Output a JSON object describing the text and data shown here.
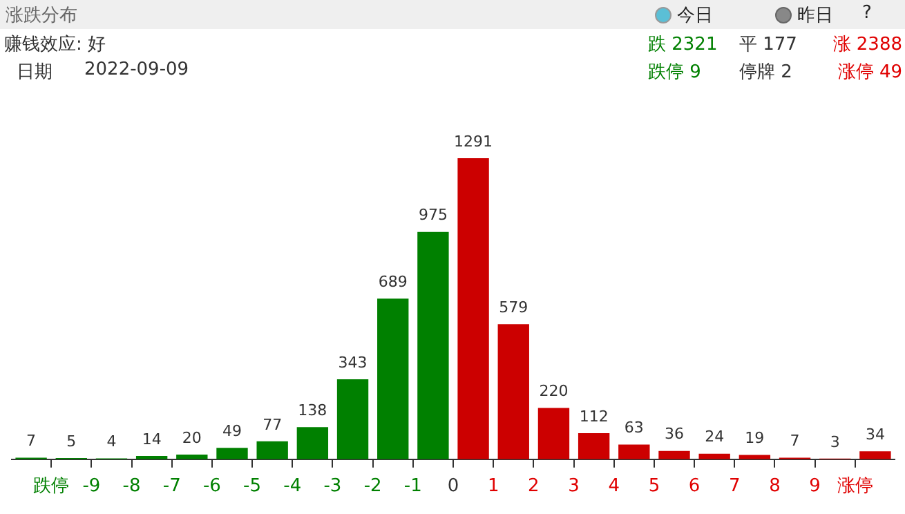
{
  "chart_data": {
    "type": "bar",
    "title": "涨跌分布",
    "x": [
      -10.5,
      -9.5,
      -8.5,
      -7.5,
      -6.5,
      -5.5,
      -4.5,
      -3.5,
      -2.5,
      -1.5,
      -0.5,
      0.5,
      1.5,
      2.5,
      3.5,
      4.5,
      5.5,
      6.5,
      7.5,
      8.5,
      9.5,
      10.5
    ],
    "values": [
      7,
      5,
      4,
      14,
      20,
      49,
      77,
      138,
      343,
      689,
      975,
      1291,
      579,
      220,
      112,
      63,
      36,
      24,
      19,
      7,
      3,
      34
    ],
    "colors": [
      "#008000",
      "#008000",
      "#008000",
      "#008000",
      "#008000",
      "#008000",
      "#008000",
      "#008000",
      "#008000",
      "#008000",
      "#008000",
      "#cc0000",
      "#cc0000",
      "#cc0000",
      "#cc0000",
      "#cc0000",
      "#cc0000",
      "#cc0000",
      "#cc0000",
      "#cc0000",
      "#cc0000",
      "#cc0000"
    ],
    "xlim": [
      -11,
      11
    ],
    "xticks": [
      {
        "value": -10,
        "label": "跌停"
      },
      {
        "value": -9,
        "label": "-9"
      },
      {
        "value": -8,
        "label": "-8"
      },
      {
        "value": -7,
        "label": "-7"
      },
      {
        "value": -6,
        "label": "-6"
      },
      {
        "value": -5,
        "label": "-5"
      },
      {
        "value": -4,
        "label": "-4"
      },
      {
        "value": -3,
        "label": "-3"
      },
      {
        "value": -2,
        "label": "-2"
      },
      {
        "value": -1,
        "label": "-1"
      },
      {
        "value": 0,
        "label": "0"
      },
      {
        "value": 1,
        "label": "1"
      },
      {
        "value": 2,
        "label": "2"
      },
      {
        "value": 3,
        "label": "3"
      },
      {
        "value": 4,
        "label": "4"
      },
      {
        "value": 5,
        "label": "5"
      },
      {
        "value": 6,
        "label": "6"
      },
      {
        "value": 7,
        "label": "7"
      },
      {
        "value": 8,
        "label": "8"
      },
      {
        "value": 9,
        "label": "9"
      },
      {
        "value": 10,
        "label": "涨停"
      }
    ],
    "tick_labels": "x",
    "grid": false,
    "legend": false,
    "data_labels": true,
    "annotations": [
      "赚钱效应: 好",
      "日期",
      "2022-09-09",
      "跌 2321",
      "平 177",
      "涨 2388",
      "跌停 9",
      "停牌 2",
      "涨停 49",
      "今日",
      "昨日",
      "?"
    ]
  }
}
